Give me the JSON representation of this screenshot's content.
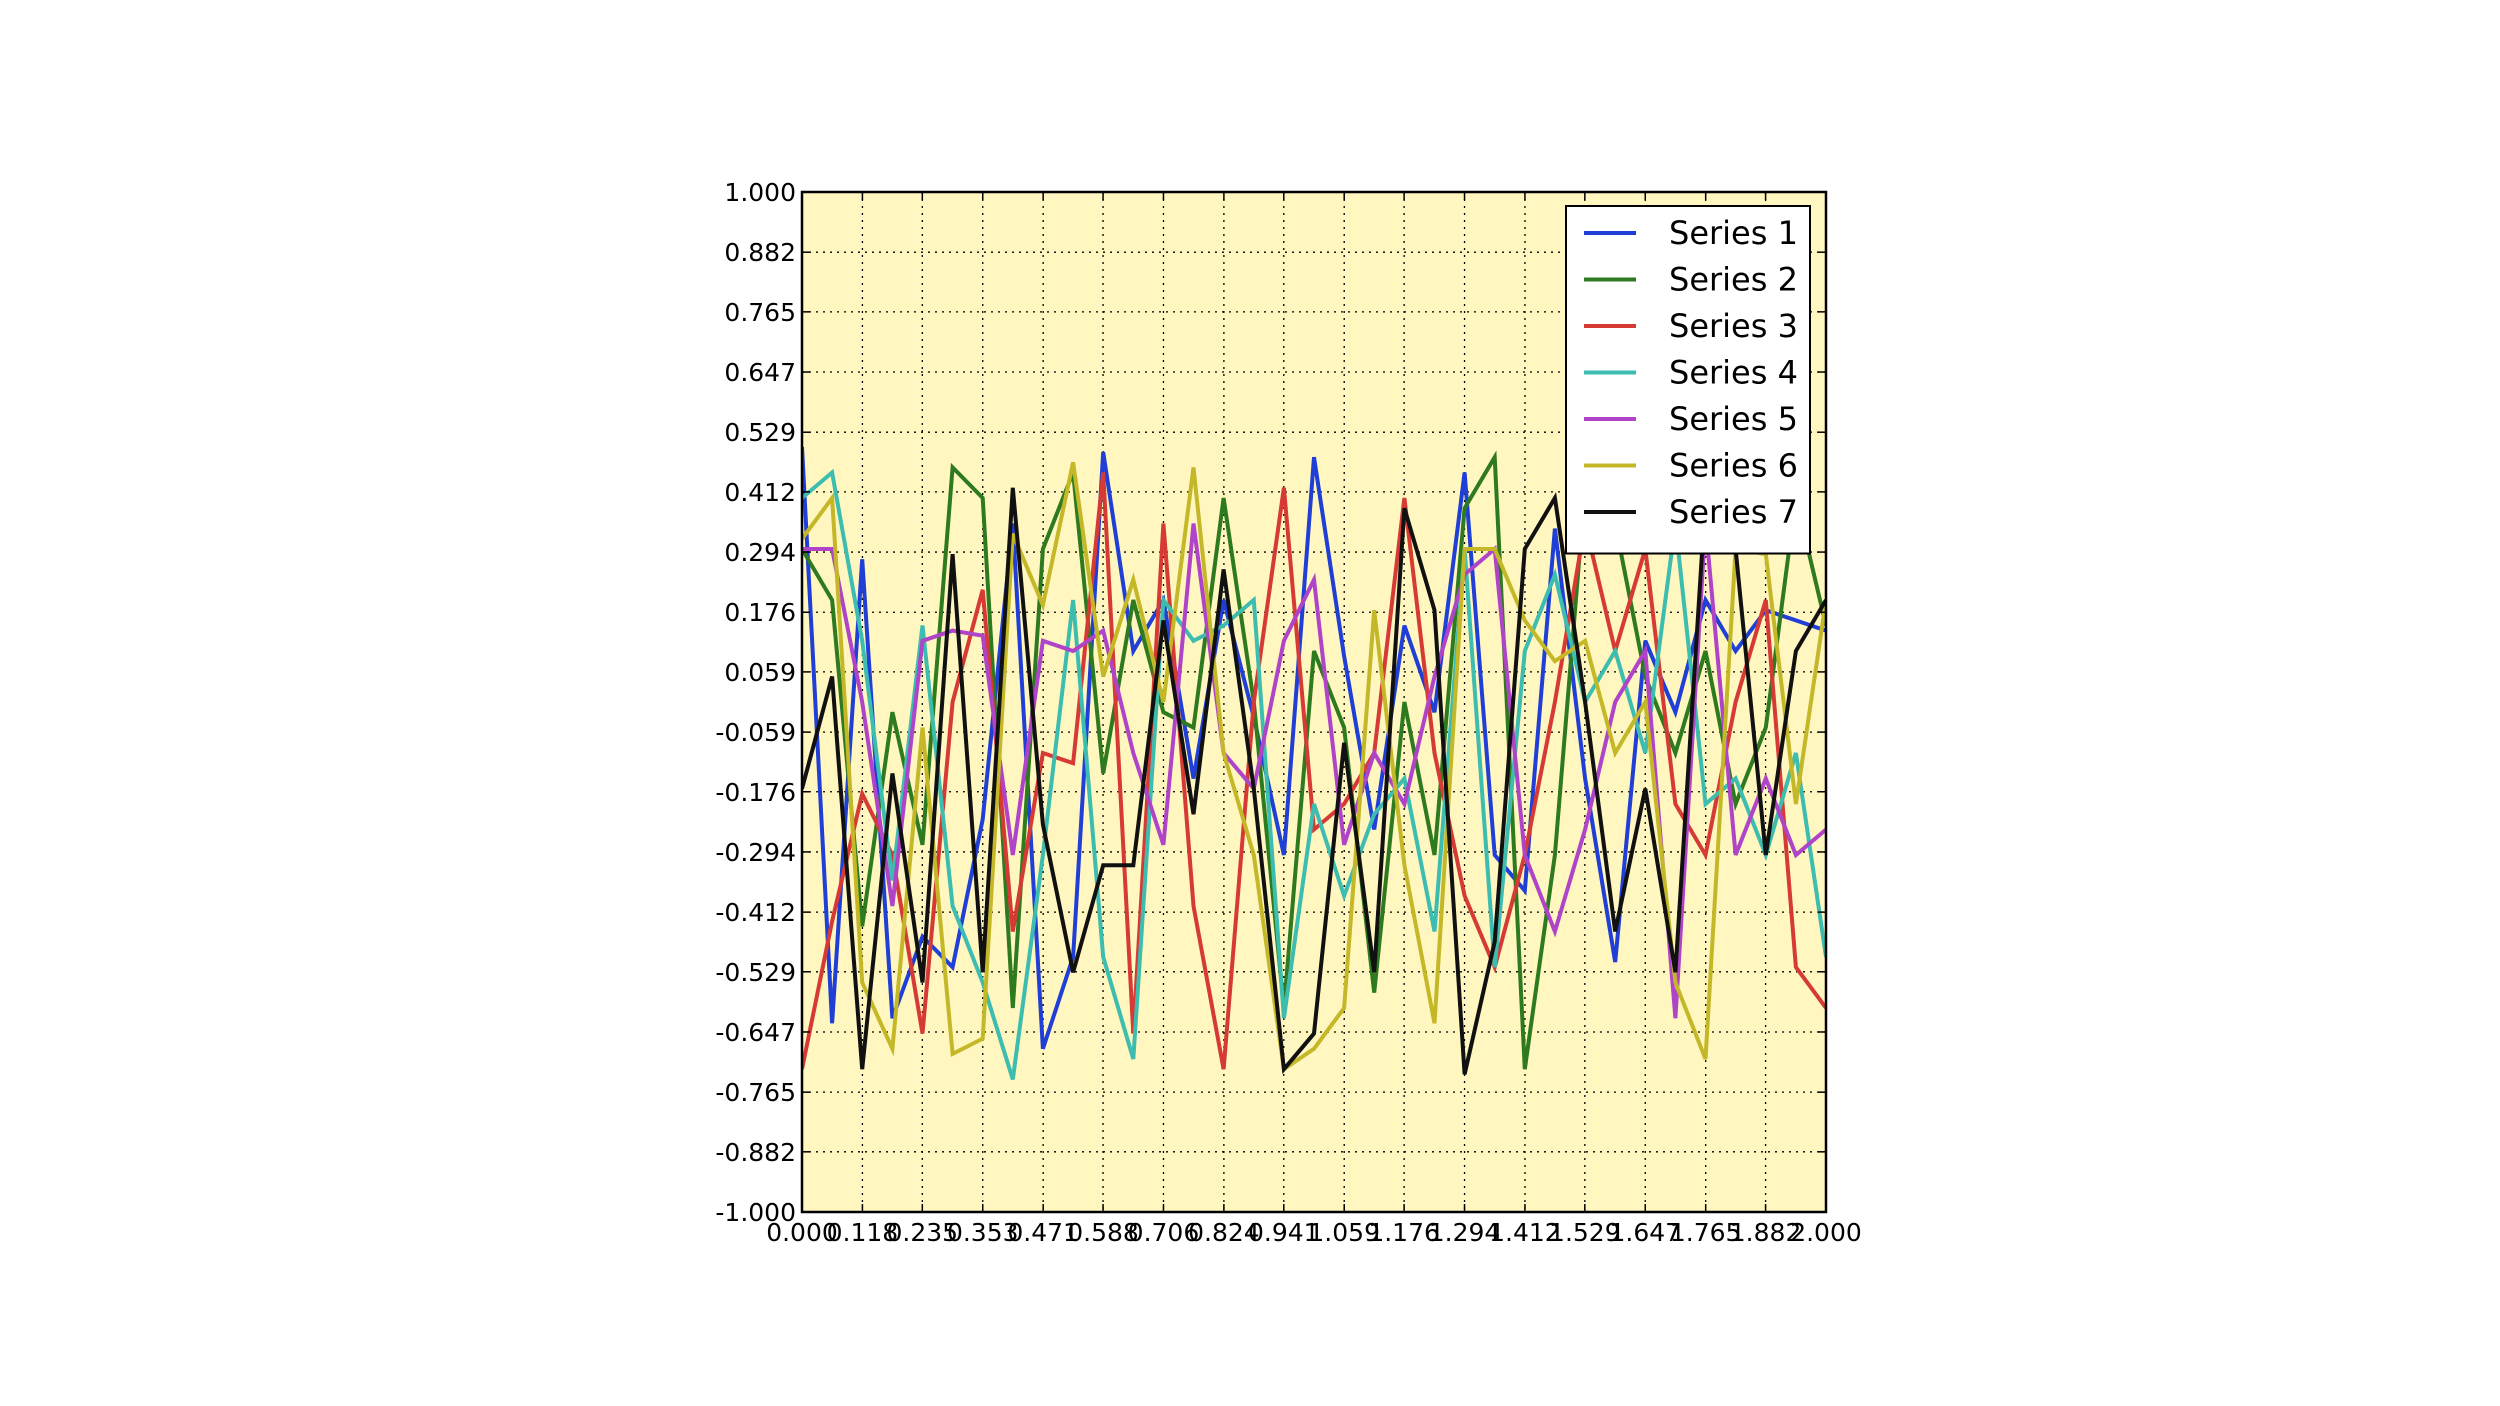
{
  "chart_data": {
    "type": "line",
    "title": "",
    "xlabel": "",
    "ylabel": "",
    "xlim": [
      0,
      2
    ],
    "ylim": [
      -1,
      1
    ],
    "grid": true,
    "grid_style": "dotted",
    "legend_position": "top-right",
    "background_color": "#fff6c0",
    "x_ticks": [
      "0.000",
      "0.118",
      "0.235",
      "0.353",
      "0.471",
      "0.588",
      "0.706",
      "0.824",
      "0.941",
      "1.059",
      "1.176",
      "1.294",
      "1.412",
      "1.529",
      "1.647",
      "1.765",
      "1.882",
      "2.000"
    ],
    "y_ticks": [
      "-1.000",
      "-0.882",
      "-0.765",
      "-0.647",
      "-0.529",
      "-0.412",
      "-0.294",
      "-0.176",
      "-0.059",
      "0.059",
      "0.176",
      "0.294",
      "0.412",
      "0.529",
      "0.647",
      "0.765",
      "0.882",
      "1.000"
    ],
    "x": [
      0.0,
      0.0588,
      0.1176,
      0.1765,
      0.2353,
      0.2941,
      0.3529,
      0.4118,
      0.4706,
      0.5294,
      0.5882,
      0.6471,
      0.7059,
      0.7647,
      0.8235,
      0.8824,
      0.9412,
      1.0,
      1.0588,
      1.1176,
      1.1765,
      1.2353,
      1.2941,
      1.3529,
      1.4118,
      1.4706,
      1.5294,
      1.5882,
      1.6471,
      1.7059,
      1.7647,
      1.8235,
      1.8824,
      1.9412,
      2.0
    ],
    "series": [
      {
        "name": "Series 1",
        "color": "#1f3fd6",
        "values": [
          0.5,
          -0.63,
          0.28,
          -0.62,
          -0.46,
          -0.52,
          -0.23,
          0.35,
          -0.68,
          -0.5,
          0.49,
          0.1,
          0.2,
          -0.15,
          0.2,
          -0.03,
          -0.3,
          0.48,
          0.09,
          -0.25,
          0.15,
          -0.02,
          0.45,
          -0.3,
          -0.37,
          0.34,
          -0.15,
          -0.51,
          0.12,
          -0.02,
          0.2,
          0.1,
          0.18,
          0.16,
          0.14
        ]
      },
      {
        "name": "Series 2",
        "color": "#2e7a1f",
        "values": [
          0.3,
          0.2,
          -0.44,
          -0.02,
          -0.28,
          0.46,
          0.4,
          -0.6,
          0.3,
          0.45,
          -0.14,
          0.2,
          -0.02,
          -0.05,
          0.4,
          0.0,
          -0.6,
          0.1,
          -0.05,
          -0.57,
          0.0,
          -0.3,
          0.38,
          0.48,
          -0.72,
          -0.3,
          0.42,
          0.35,
          0.05,
          -0.1,
          0.1,
          -0.2,
          -0.05,
          0.4,
          0.15
        ]
      },
      {
        "name": "Series 3",
        "color": "#d63a34",
        "values": [
          -0.72,
          -0.43,
          -0.18,
          -0.3,
          -0.65,
          0.0,
          0.22,
          -0.45,
          -0.1,
          -0.12,
          0.45,
          -0.65,
          0.35,
          -0.4,
          -0.72,
          0.0,
          0.42,
          -0.25,
          -0.2,
          -0.1,
          0.4,
          -0.1,
          -0.38,
          -0.52,
          -0.3,
          0.0,
          0.35,
          0.1,
          0.3,
          -0.2,
          -0.3,
          0.0,
          0.2,
          -0.52,
          -0.6
        ]
      },
      {
        "name": "Series 4",
        "color": "#3cbdb0",
        "values": [
          0.4,
          0.45,
          0.12,
          -0.35,
          0.15,
          -0.4,
          -0.55,
          -0.74,
          -0.3,
          0.2,
          -0.5,
          -0.7,
          0.2,
          0.12,
          0.15,
          0.2,
          -0.62,
          -0.2,
          -0.38,
          -0.22,
          -0.15,
          -0.45,
          0.3,
          -0.52,
          0.1,
          0.25,
          0.0,
          0.1,
          -0.1,
          0.35,
          -0.2,
          -0.15,
          -0.3,
          -0.1,
          -0.5
        ]
      },
      {
        "name": "Series 5",
        "color": "#b044c8",
        "values": [
          0.3,
          0.3,
          0.0,
          -0.4,
          0.12,
          0.14,
          0.13,
          -0.3,
          0.12,
          0.1,
          0.14,
          -0.1,
          -0.28,
          0.35,
          -0.1,
          -0.17,
          0.12,
          0.24,
          -0.28,
          -0.1,
          -0.2,
          0.05,
          0.25,
          0.3,
          -0.3,
          -0.45,
          -0.25,
          0.0,
          0.1,
          -0.62,
          0.35,
          -0.3,
          -0.15,
          -0.3,
          -0.25
        ]
      },
      {
        "name": "Series 6",
        "color": "#c4b828",
        "values": [
          0.32,
          0.4,
          -0.55,
          -0.68,
          -0.05,
          -0.69,
          -0.66,
          0.33,
          0.19,
          0.47,
          0.05,
          0.24,
          0.0,
          0.46,
          -0.1,
          -0.3,
          -0.72,
          -0.68,
          -0.6,
          0.18,
          -0.32,
          -0.63,
          0.3,
          0.3,
          0.16,
          0.08,
          0.12,
          -0.1,
          0.0,
          -0.55,
          -0.7,
          0.3,
          0.29,
          -0.2,
          0.2
        ]
      },
      {
        "name": "Series 7",
        "color": "#111111",
        "values": [
          -0.17,
          0.05,
          -0.72,
          -0.14,
          -0.55,
          0.29,
          -0.53,
          0.42,
          -0.24,
          -0.53,
          -0.32,
          -0.32,
          0.16,
          -0.22,
          0.26,
          -0.17,
          -0.72,
          -0.65,
          -0.08,
          -0.53,
          0.38,
          0.18,
          -0.73,
          -0.47,
          0.3,
          0.4,
          0.0,
          -0.45,
          -0.17,
          -0.53,
          0.4,
          0.3,
          -0.3,
          0.1,
          0.2
        ]
      }
    ]
  }
}
